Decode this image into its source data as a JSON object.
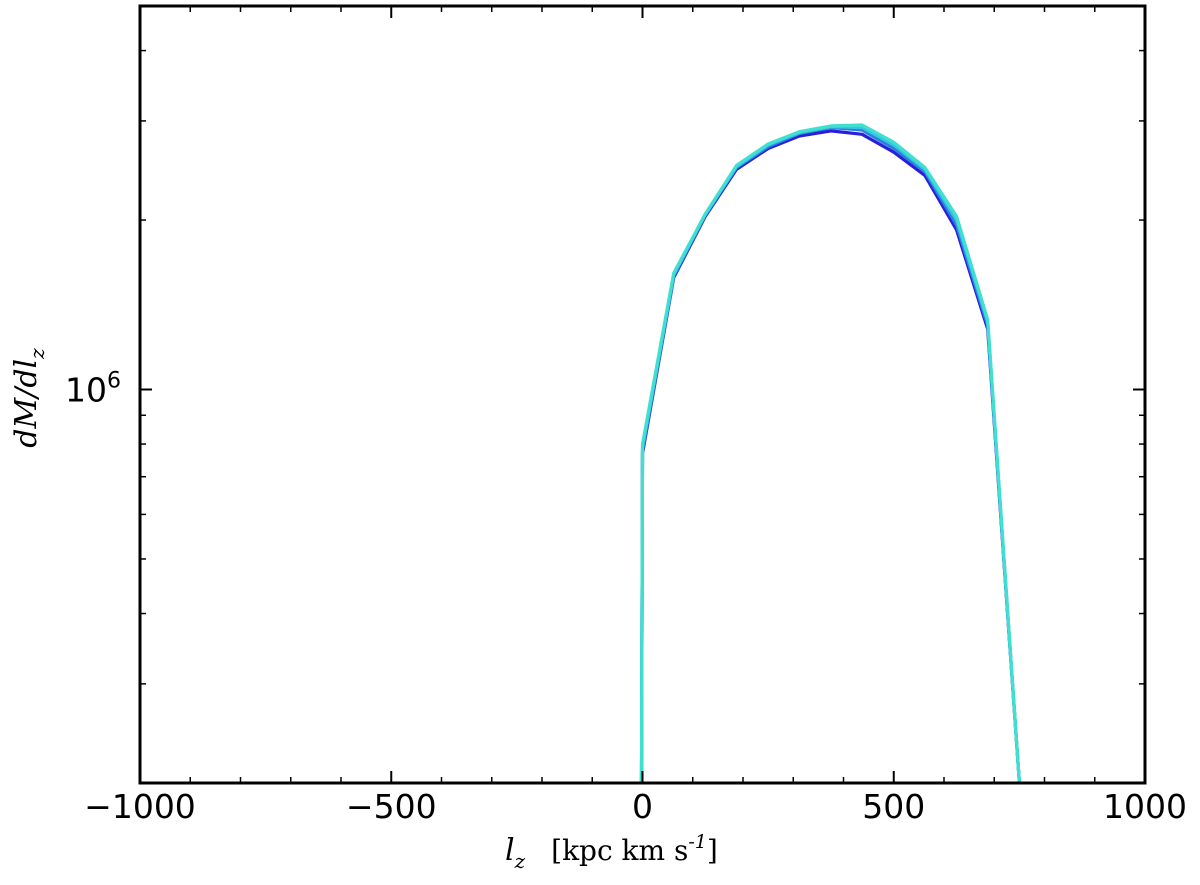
{
  "chart_data": {
    "type": "line",
    "xlabel": "l_z",
    "xlabel_unit": "[kpc km s^-1]",
    "ylabel": "dM/dl_z",
    "xlim": [
      -1000,
      1000
    ],
    "ylim": [
      200000,
      4800000
    ],
    "yscale": "log",
    "grid": false,
    "legend": "none",
    "x_ticks": [
      {
        "value": -1000,
        "label": "−1000"
      },
      {
        "value": -500,
        "label": "−500"
      },
      {
        "value": 0,
        "label": "0"
      },
      {
        "value": 500,
        "label": "500"
      },
      {
        "value": 1000,
        "label": "1000"
      }
    ],
    "y_ticks": [
      {
        "value": 1000000,
        "base": "10",
        "exp": "6"
      }
    ],
    "series": [
      {
        "color": "#2a1fd8",
        "x": [
          -2,
          0,
          62,
          125,
          187,
          250,
          312,
          375,
          437,
          500,
          562,
          625,
          687,
          750
        ],
        "y": [
          200000,
          770000,
          1580000,
          2030000,
          2460000,
          2680000,
          2820000,
          2880000,
          2840000,
          2640000,
          2400000,
          1920000,
          1280000,
          200000
        ]
      },
      {
        "color": "#2c7fe0",
        "x": [
          -2,
          0,
          62,
          125,
          187,
          250,
          312,
          375,
          437,
          500,
          562,
          625,
          687,
          750
        ],
        "y": [
          200000,
          780000,
          1590000,
          2040000,
          2480000,
          2700000,
          2850000,
          2920000,
          2890000,
          2680000,
          2440000,
          1960000,
          1300000,
          200000
        ]
      },
      {
        "color": "#36c6e0",
        "x": [
          -2,
          0,
          62,
          125,
          187,
          250,
          312,
          375,
          437,
          500,
          562,
          625,
          687,
          750
        ],
        "y": [
          200000,
          790000,
          1600000,
          2050000,
          2490000,
          2720000,
          2860000,
          2930000,
          2920000,
          2720000,
          2460000,
          2000000,
          1320000,
          200000
        ]
      },
      {
        "color": "#3fe0d0",
        "x": [
          -2,
          0,
          62,
          125,
          187,
          250,
          312,
          375,
          437,
          500,
          562,
          625,
          687,
          750
        ],
        "y": [
          200000,
          800000,
          1610000,
          2050000,
          2500000,
          2730000,
          2870000,
          2940000,
          2950000,
          2750000,
          2480000,
          2030000,
          1330000,
          200000
        ]
      }
    ]
  }
}
